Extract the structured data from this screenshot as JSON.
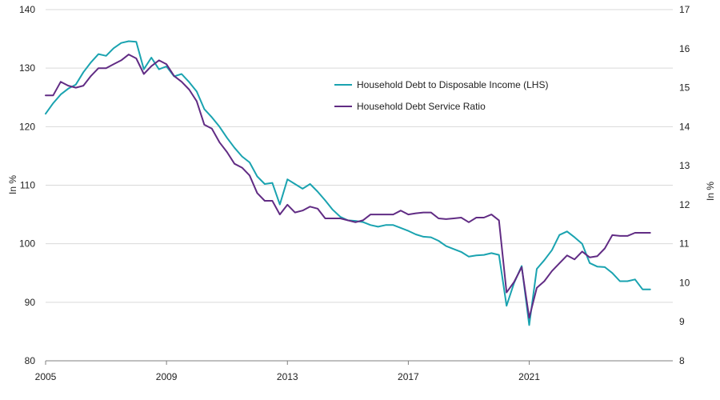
{
  "chart_data": {
    "type": "line",
    "title": "",
    "x_start_year": 2005,
    "x_ticks": [
      "2005",
      "2009",
      "2013",
      "2017",
      "2021"
    ],
    "left_axis": {
      "label": "In %",
      "min": 80,
      "max": 140,
      "ticks": [
        80,
        90,
        100,
        110,
        120,
        130,
        140
      ]
    },
    "right_axis": {
      "label": "In %",
      "min": 8,
      "max": 17,
      "ticks": [
        8,
        9,
        10,
        11,
        12,
        13,
        14,
        15,
        16,
        17
      ]
    },
    "grid": true,
    "legend_position": "top-right",
    "series": [
      {
        "name": "Household Debt to Disposable Income (LHS)",
        "axis": "left",
        "color": "#1aa3b0",
        "x": [
          2005.0,
          2005.25,
          2005.5,
          2005.75,
          2006.0,
          2006.25,
          2006.5,
          2006.75,
          2007.0,
          2007.25,
          2007.5,
          2007.75,
          2008.0,
          2008.25,
          2008.5,
          2008.75,
          2009.0,
          2009.25,
          2009.5,
          2009.75,
          2010.0,
          2010.25,
          2010.5,
          2010.75,
          2011.0,
          2011.25,
          2011.5,
          2011.75,
          2012.0,
          2012.25,
          2012.5,
          2012.75,
          2013.0,
          2013.25,
          2013.5,
          2013.75,
          2014.0,
          2014.25,
          2014.5,
          2014.75,
          2015.0,
          2015.25,
          2015.5,
          2015.75,
          2016.0,
          2016.25,
          2016.5,
          2016.75,
          2017.0,
          2017.25,
          2017.5,
          2017.75,
          2018.0,
          2018.25,
          2018.5,
          2018.75,
          2019.0,
          2019.25,
          2019.5,
          2019.75,
          2020.0,
          2020.25,
          2020.5,
          2020.75,
          2021.0,
          2021.25,
          2021.5,
          2021.75,
          2022.0,
          2022.25,
          2022.5,
          2022.75,
          2023.0,
          2023.25,
          2023.5,
          2023.75,
          2024.0,
          2024.25,
          2024.5,
          2024.75,
          2025.0
        ],
        "values": [
          122.2,
          124.0,
          125.5,
          126.5,
          127.2,
          129.3,
          131.0,
          132.4,
          132.1,
          133.4,
          134.3,
          134.6,
          134.5,
          129.8,
          131.8,
          129.8,
          130.3,
          128.6,
          129.0,
          127.6,
          126.0,
          123.0,
          121.6,
          120.0,
          118.1,
          116.4,
          114.9,
          113.9,
          111.5,
          110.2,
          110.4,
          106.7,
          111.0,
          110.2,
          109.4,
          110.2,
          108.9,
          107.4,
          105.8,
          104.6,
          104.0,
          103.9,
          103.7,
          103.2,
          102.9,
          103.2,
          103.2,
          102.7,
          102.2,
          101.6,
          101.2,
          101.1,
          100.5,
          99.6,
          99.1,
          98.6,
          97.8,
          98.0,
          98.1,
          98.4,
          98.1,
          89.4,
          93.3,
          96.2,
          86.1,
          95.7,
          97.2,
          98.9,
          101.5,
          102.1,
          101.1,
          100.0,
          96.7,
          96.1,
          96.0,
          95.0,
          93.6,
          93.6,
          93.9,
          92.2,
          92.2
        ]
      },
      {
        "name": "Household Debt Service Ratio",
        "axis": "right",
        "color": "#612c84",
        "x": [
          2005.0,
          2005.25,
          2005.5,
          2005.75,
          2006.0,
          2006.25,
          2006.5,
          2006.75,
          2007.0,
          2007.25,
          2007.5,
          2007.75,
          2008.0,
          2008.25,
          2008.5,
          2008.75,
          2009.0,
          2009.25,
          2009.5,
          2009.75,
          2010.0,
          2010.25,
          2010.5,
          2010.75,
          2011.0,
          2011.25,
          2011.5,
          2011.75,
          2012.0,
          2012.25,
          2012.5,
          2012.75,
          2013.0,
          2013.25,
          2013.5,
          2013.75,
          2014.0,
          2014.25,
          2014.5,
          2014.75,
          2015.0,
          2015.25,
          2015.5,
          2015.75,
          2016.0,
          2016.25,
          2016.5,
          2016.75,
          2017.0,
          2017.25,
          2017.5,
          2017.75,
          2018.0,
          2018.25,
          2018.5,
          2018.75,
          2019.0,
          2019.25,
          2019.5,
          2019.75,
          2020.0,
          2020.25,
          2020.5,
          2020.75,
          2021.0,
          2021.25,
          2021.5,
          2021.75,
          2022.0,
          2022.25,
          2022.5,
          2022.75,
          2023.0,
          2023.25,
          2023.5,
          2023.75,
          2024.0,
          2024.25,
          2024.5,
          2024.75,
          2025.0
        ],
        "values": [
          14.8,
          14.8,
          15.15,
          15.05,
          15.0,
          15.05,
          15.3,
          15.5,
          15.5,
          15.6,
          15.7,
          15.85,
          15.75,
          15.35,
          15.55,
          15.7,
          15.6,
          15.3,
          15.15,
          14.95,
          14.65,
          14.05,
          13.95,
          13.6,
          13.35,
          13.05,
          12.95,
          12.75,
          12.3,
          12.1,
          12.1,
          11.75,
          12.0,
          11.8,
          11.85,
          11.95,
          11.9,
          11.65,
          11.65,
          11.65,
          11.6,
          11.55,
          11.6,
          11.75,
          11.75,
          11.75,
          11.75,
          11.85,
          11.75,
          11.78,
          11.8,
          11.8,
          11.65,
          11.63,
          11.65,
          11.67,
          11.55,
          11.67,
          11.67,
          11.75,
          11.6,
          9.75,
          10.02,
          10.4,
          9.1,
          9.87,
          10.04,
          10.3,
          10.5,
          10.7,
          10.6,
          10.8,
          10.65,
          10.68,
          10.88,
          11.22,
          11.2,
          11.2,
          11.28,
          11.28,
          11.28
        ]
      }
    ]
  }
}
